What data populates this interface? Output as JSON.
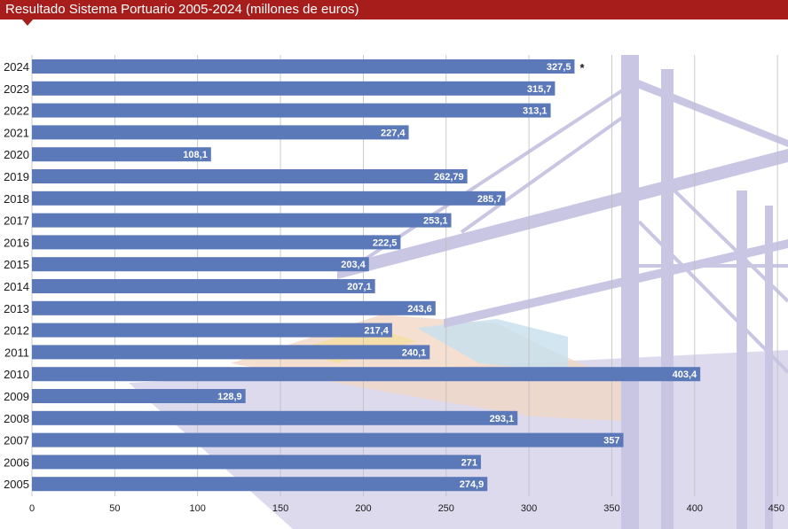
{
  "header": {
    "title": "Resultado Sistema Portuario 2005-2024 (millones de euros)"
  },
  "colors": {
    "header": "#a61d1b",
    "bar": "#5b78b8",
    "illustration": "#c9c6e4"
  },
  "chart_data": {
    "type": "bar",
    "orientation": "horizontal",
    "title": "Resultado Sistema Portuario 2005-2024 (millones de euros)",
    "xlabel": "",
    "ylabel": "",
    "xlim": [
      0,
      450
    ],
    "x_ticks": [
      0,
      50,
      100,
      150,
      200,
      250,
      300,
      350,
      400,
      450
    ],
    "grid": true,
    "categories": [
      "2024",
      "2023",
      "2022",
      "2021",
      "2020",
      "2019",
      "2018",
      "2017",
      "2016",
      "2015",
      "2014",
      "2013",
      "2012",
      "2011",
      "2010",
      "2009",
      "2008",
      "2007",
      "2006",
      "2005"
    ],
    "values": [
      327.5,
      315.7,
      313.1,
      227.4,
      108.1,
      262.79,
      285.7,
      253.1,
      222.5,
      203.4,
      207.1,
      243.6,
      217.4,
      240.1,
      403.4,
      128.9,
      293.1,
      357,
      271,
      274.9
    ],
    "value_labels": [
      "327,5",
      "315,7",
      "313,1",
      "227,4",
      "108,1",
      "262,79",
      "285,7",
      "253,1",
      "222,5",
      "203,4",
      "207,1",
      "243,6",
      "217,4",
      "240,1",
      "403,4",
      "128,9",
      "293,1",
      "357",
      "271",
      "274,9"
    ],
    "annotations": [
      {
        "category": "2024",
        "text": "*"
      }
    ]
  }
}
